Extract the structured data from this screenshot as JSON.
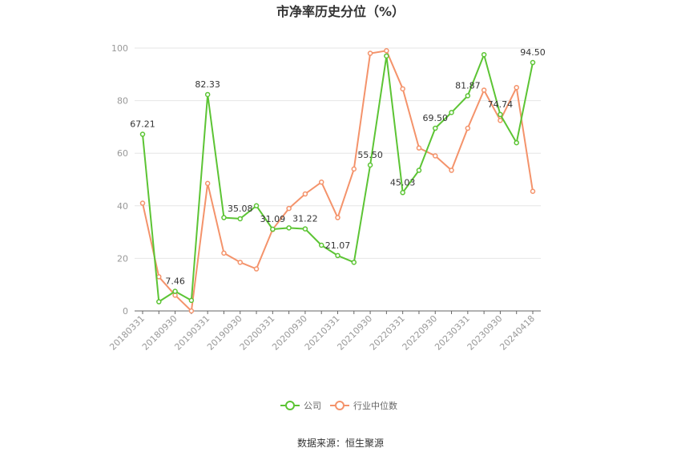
{
  "chart_data": {
    "type": "line",
    "title": "市净率历史分位（%）",
    "xlabel": "",
    "ylabel": "",
    "ylim": [
      0,
      100
    ],
    "yticks": [
      0,
      20,
      40,
      60,
      80,
      100
    ],
    "grid": true,
    "legend_position": "bottom",
    "x": [
      "20180331",
      "20180630",
      "20180930",
      "20181231",
      "20190331",
      "20190630",
      "20190930",
      "20191231",
      "20200331",
      "20200630",
      "20200930",
      "20201231",
      "20210331",
      "20210630",
      "20210930",
      "20211231",
      "20220331",
      "20220630",
      "20220930",
      "20221231",
      "20230331",
      "20230630",
      "20230930",
      "20231231",
      "20240418"
    ],
    "x_tick_labels": [
      "20180331",
      "20180930",
      "20190331",
      "20190930",
      "20200331",
      "20200930",
      "20210331",
      "20210930",
      "20220331",
      "20220930",
      "20230331",
      "20230930",
      "20240418"
    ],
    "series": [
      {
        "name": "公司",
        "color": "#5cc434",
        "values": [
          67.21,
          3.5,
          7.46,
          4.0,
          82.33,
          35.5,
          35.08,
          40.0,
          31.09,
          31.6,
          31.22,
          25.0,
          21.07,
          18.5,
          55.5,
          97.0,
          45.03,
          53.5,
          69.5,
          75.5,
          81.87,
          97.5,
          74.74,
          64.0,
          94.5
        ]
      },
      {
        "name": "行业中位数",
        "color": "#f4936b",
        "values": [
          41.0,
          13.0,
          6.0,
          0.0,
          48.5,
          22.0,
          18.5,
          16.0,
          31.0,
          39.0,
          44.5,
          49.0,
          35.5,
          54.0,
          98.0,
          99.0,
          84.5,
          62.0,
          59.0,
          53.5,
          69.5,
          84.0,
          72.5,
          85.0,
          45.5
        ]
      }
    ],
    "data_labels": [
      {
        "index": 0,
        "text": "67.21"
      },
      {
        "index": 2,
        "text": "7.46"
      },
      {
        "index": 4,
        "text": "82.33"
      },
      {
        "index": 6,
        "text": "35.08"
      },
      {
        "index": 8,
        "text": "31.09"
      },
      {
        "index": 10,
        "text": "31.22"
      },
      {
        "index": 12,
        "text": "21.07"
      },
      {
        "index": 14,
        "text": "55.50"
      },
      {
        "index": 16,
        "text": "45.03"
      },
      {
        "index": 18,
        "text": "69.50"
      },
      {
        "index": 20,
        "text": "81.87"
      },
      {
        "index": 22,
        "text": "74.74"
      },
      {
        "index": 24,
        "text": "94.50"
      }
    ]
  },
  "source": "数据来源：恒生聚源"
}
